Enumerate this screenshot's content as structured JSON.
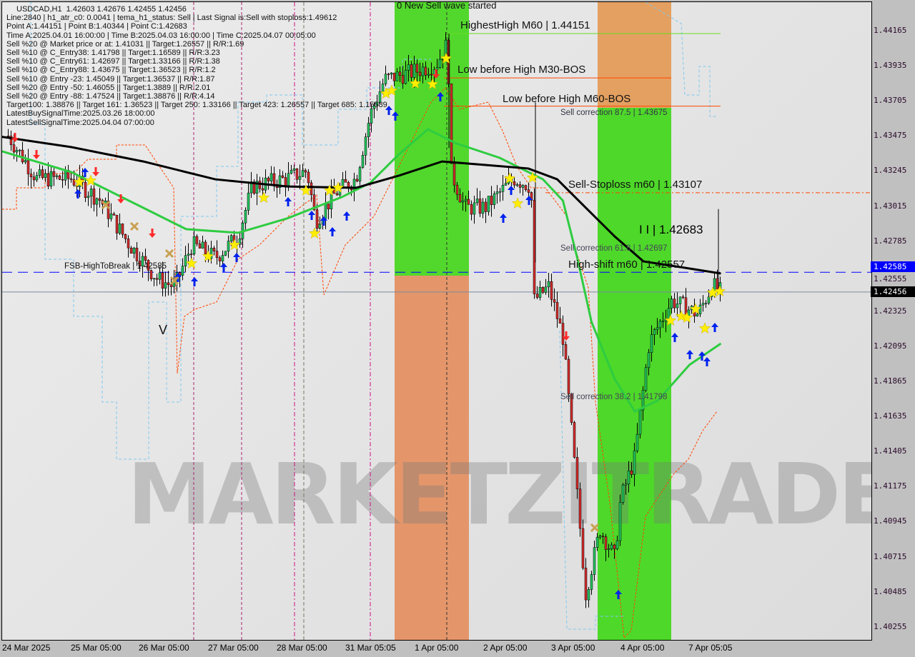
{
  "chart_data": {
    "type": "candlestick",
    "symbol_line": "USDCAD,H1  1.42603 1.42676 1.42455 1.42456",
    "info_lines": [
      "Line:2840 | h1_atr_c0: 0.0041 | tema_h1_status: Sell | Last Signal is:Sell with stoploss:1.49612",
      "Point A:1.44151 | Point B:1.40344 | Point C:1.42683",
      "Time A:2025.04.01 16:00:00 | Time B:2025.04.03 16:00:00 | Time C:2025.04.07 00:05:00",
      "Sell %20 @ Market price or at: 1.41031 || Target:1.26557 || R/R:1.69",
      "Sell %10 @ C_Entry38: 1.41798 || Target:1.16589 || R/R:3.23",
      "Sell %10 @ C_Entry61: 1.42697 || Target:1.33166 || R/R:1.38",
      "Sell %10 @ C_Entry88: 1.43675 || Target:1.36523 || R/R:1.2",
      "Sell %10 @ Entry -23: 1.45049 || Target:1.36537 || R/R:1.87",
      "Sell %20 @ Entry -50: 1.46055 || Target:1.3889 || R/R:2.01",
      "Sell %20 @ Entry -88: 1.47524 || Target:1.38876 || R/R:4.14",
      "Target100: 1.38876 || Target 161: 1.36523 || Target 250: 1.33166 || Target 423: 1.26557 || Target 685: 1.15589",
      "LatestBuySignalTime:2025.03.26 18:00:00",
      "LatestSellSignalTime:2025.04.04 07:00:00"
    ],
    "annotations": {
      "new_wave": "0 New Sell wave started",
      "highest_high": "HighestHigh   M60 | 1.44151",
      "m30_bos": "Low before High   M30-BOS",
      "m60_bos": "Low before High   M60-BOS",
      "sell_corr_875": "Sell correction 87.5 | 1.43675",
      "stoploss": "Sell-Stoploss m60 | 1.43107",
      "point_c": "I I | 1.42683",
      "sell_corr_618": "Sell correction 61.8 | 1.42697",
      "high_shift": "High-shift m60 | 1.42557",
      "fsb": "FSB-HighToBreak | 1.42585",
      "sell_corr_382": "Sell correction 38.2 | 1.41798",
      "v_mark": "V",
      "watermark": "MARKETZITRADE"
    },
    "y_ticks": [
      "1.44165",
      "1.43935",
      "1.43705",
      "1.43475",
      "1.43245",
      "1.43015",
      "1.42785",
      "1.42555",
      "1.42325",
      "1.42095",
      "1.41865",
      "1.41635",
      "1.41405",
      "1.41175",
      "1.40945",
      "1.40715",
      "1.40485",
      "1.40255"
    ],
    "ylim": [
      1.4015,
      1.4445
    ],
    "price_tags": {
      "fsb": "1.42585",
      "current": "1.42456"
    },
    "x_ticks": [
      "24 Mar 2025",
      "25 Mar 05:00",
      "26 Mar 05:00",
      "27 Mar 05:00",
      "28 Mar 05:00",
      "31 Mar 05:05",
      "1 Apr 05:00",
      "2 Apr 05:00",
      "3 Apr 05:00",
      "4 Apr 05:00",
      "7 Apr 05:05"
    ],
    "price_path": [
      [
        "24 Mar 07:00",
        1.4348
      ],
      [
        "24 Mar 17:00",
        1.432
      ],
      [
        "25 Mar 05:00",
        1.432
      ],
      [
        "25 Mar 15:00",
        1.4306
      ],
      [
        "26 Mar 01:00",
        1.4277
      ],
      [
        "26 Mar 11:00",
        1.4254
      ],
      [
        "26 Mar 17:00",
        1.4249
      ],
      [
        "26 Mar 23:00",
        1.4277
      ],
      [
        "27 Mar 07:00",
        1.4268
      ],
      [
        "27 Mar 15:00",
        1.4282
      ],
      [
        "27 Mar 20:00",
        1.4315
      ],
      [
        "28 Mar 08:00",
        1.432
      ],
      [
        "28 Mar 15:00",
        1.4325
      ],
      [
        "28 Mar 18:00",
        1.4292
      ],
      [
        "31 Mar 01:00",
        1.4311
      ],
      [
        "31 Mar 08:00",
        1.432
      ],
      [
        "31 Mar 13:00",
        1.4362
      ],
      [
        "31 Mar 18:00",
        1.4385
      ],
      [
        "1 Apr 04:00",
        1.439
      ],
      [
        "1 Apr 12:00",
        1.4395
      ],
      [
        "1 Apr 16:00",
        1.4409
      ],
      [
        "1 Apr 17:00",
        1.4325
      ],
      [
        "1 Apr 22:00",
        1.4301
      ],
      [
        "2 Apr 05:00",
        1.4301
      ],
      [
        "2 Apr 15:00",
        1.432
      ],
      [
        "2 Apr 21:00",
        1.4315
      ],
      [
        "2 Apr 22:00",
        1.424
      ],
      [
        "3 Apr 03:00",
        1.4249
      ],
      [
        "3 Apr 08:00",
        1.4216
      ],
      [
        "3 Apr 11:00",
        1.4155
      ],
      [
        "3 Apr 16:00",
        1.4048
      ],
      [
        "3 Apr 21:00",
        1.409
      ],
      [
        "4 Apr 02:00",
        1.4071
      ],
      [
        "4 Apr 04:00",
        1.4109
      ],
      [
        "4 Apr 09:00",
        1.4137
      ],
      [
        "4 Apr 14:00",
        1.4212
      ],
      [
        "4 Apr 22:00",
        1.424
      ],
      [
        "7 Apr 07:00",
        1.4231
      ],
      [
        "7 Apr 12:00",
        1.425
      ],
      [
        "7 Apr 15:00",
        1.42456
      ]
    ],
    "ma_slow": [
      [
        "24 Mar 04:00",
        1.43476
      ],
      [
        "25 Mar 05:00",
        1.43406
      ],
      [
        "26 Mar 06:00",
        1.43312
      ],
      [
        "27 Mar 07:00",
        1.43195
      ],
      [
        "28 Mar 08:00",
        1.43148
      ],
      [
        "31 Mar 08:00",
        1.43139
      ],
      [
        "31 Mar 23:00",
        1.43219
      ],
      [
        "1 Apr 14:00",
        1.43312
      ],
      [
        "2 Apr 05:00",
        1.43289
      ],
      [
        "2 Apr 20:00",
        1.43266
      ],
      [
        "3 Apr 06:00",
        1.43195
      ],
      [
        "3 Apr 16:00",
        1.43008
      ],
      [
        "4 Apr 02:00",
        1.4282
      ],
      [
        "4 Apr 12:00",
        1.42657
      ],
      [
        "7 Apr 04:00",
        1.4261
      ],
      [
        "7 Apr 15:00",
        1.42577
      ]
    ],
    "ma_fast": [
      [
        "24 Mar 04:00",
        1.43383
      ],
      [
        "25 Mar 05:00",
        1.43242
      ],
      [
        "26 Mar 06:00",
        1.43008
      ],
      [
        "26 Mar 21:00",
        1.42868
      ],
      [
        "27 Mar 15:00",
        1.42844
      ],
      [
        "28 Mar 08:00",
        1.42938
      ],
      [
        "31 Mar 03:00",
        1.43078
      ],
      [
        "31 Mar 13:00",
        1.43172
      ],
      [
        "31 Mar 23:00",
        1.43359
      ],
      [
        "1 Apr 09:00",
        1.43523
      ],
      [
        "1 Apr 19:00",
        1.4343
      ],
      [
        "2 Apr 10:00",
        1.43336
      ],
      [
        "3 Apr 01:00",
        1.43195
      ],
      [
        "3 Apr 08:00",
        1.43055
      ],
      [
        "3 Apr 13:00",
        1.4268
      ],
      [
        "3 Apr 18:00",
        1.42259
      ],
      [
        "4 Apr 02:00",
        1.41884
      ],
      [
        "4 Apr 09:00",
        1.41673
      ],
      [
        "4 Apr 17:00",
        1.41743
      ],
      [
        "7 Apr 04:00",
        1.41978
      ],
      [
        "7 Apr 15:00",
        1.42118
      ]
    ],
    "levels": {
      "highest_high": 1.44151,
      "m30_bos": 1.4386,
      "m60_bos": 1.43675,
      "stoploss": 1.43107,
      "fsb": 1.42585,
      "current": 1.42456
    },
    "colors": {
      "up": "#22c55e",
      "down": "#d42a2a",
      "ma_slow": "#000000",
      "ma_fast": "#2ecc40",
      "zone_green": "#4fd82a",
      "zone_orange": "#e8956a",
      "fsb_line": "#0000ff",
      "stoploss_line": "#ff4500"
    }
  }
}
